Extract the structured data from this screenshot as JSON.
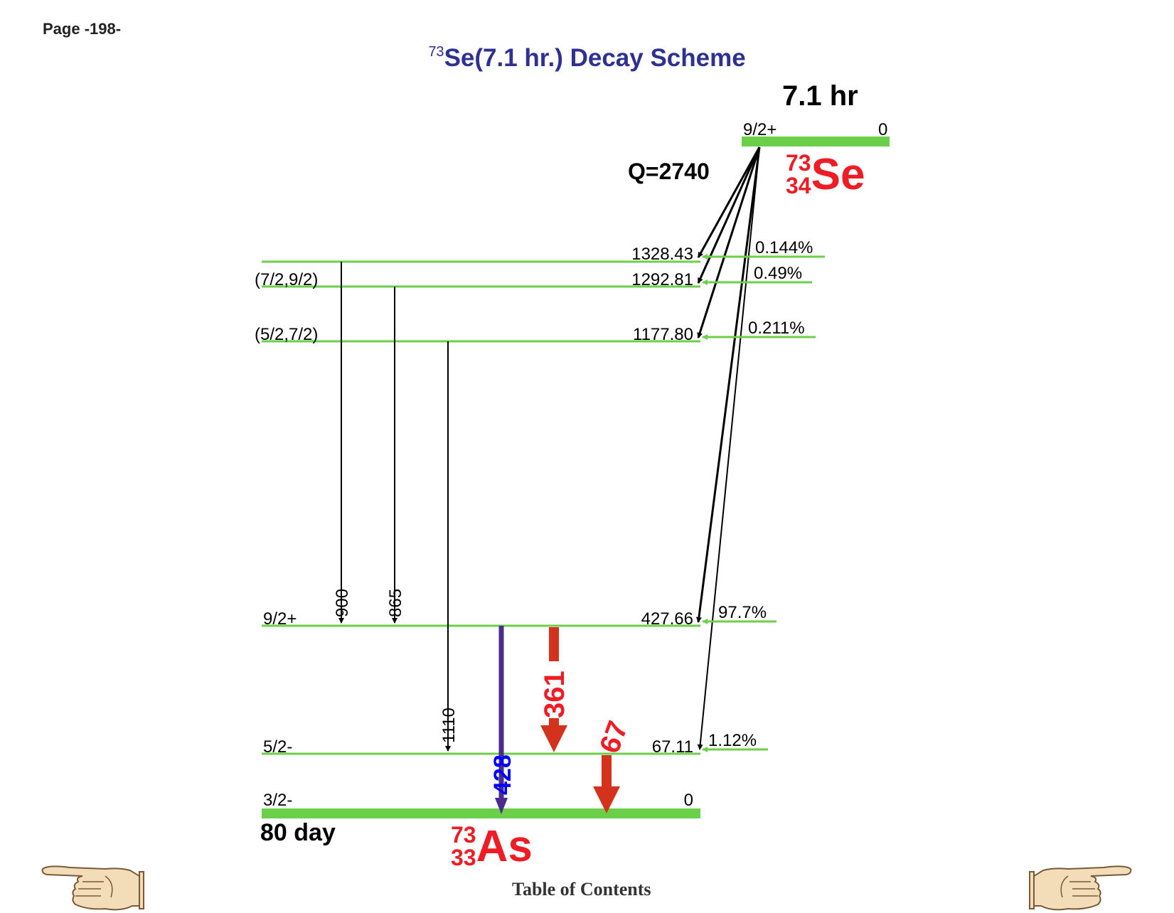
{
  "page_label": "Page -198-",
  "title": {
    "mass_number": "73",
    "text": "Se(7.1 hr.) Decay Scheme"
  },
  "parent": {
    "half_life": "7.1 hr",
    "spin": "9/2+",
    "energy": "0",
    "q_value": "Q=2740",
    "mass": "73",
    "z": "34",
    "symbol": "Se"
  },
  "daughter": {
    "half_life": "80 day",
    "mass": "73",
    "z": "33",
    "symbol": "As"
  },
  "levels": [
    {
      "energy": "1328.43",
      "spin": "",
      "beta_branch": "0.144%"
    },
    {
      "energy": "1292.81",
      "spin": "(7/2,9/2)",
      "beta_branch": "0.49%"
    },
    {
      "energy": "1177.80",
      "spin": "(5/2,7/2)",
      "beta_branch": "0.211%"
    },
    {
      "energy": "427.66",
      "spin": "9/2+",
      "beta_branch": "97.7%"
    },
    {
      "energy": "67.11",
      "spin": "5/2-",
      "beta_branch": "1.12%"
    },
    {
      "energy": "0",
      "spin": "3/2-",
      "beta_branch": ""
    }
  ],
  "gammas": [
    {
      "label": "900",
      "from": "1328.43",
      "to": "427.66",
      "color": "#000000"
    },
    {
      "label": "865",
      "from": "1292.81",
      "to": "427.66",
      "color": "#000000"
    },
    {
      "label": "1110",
      "from": "1177.80",
      "to": "67.11",
      "color": "#000000"
    },
    {
      "label": "428",
      "from": "427.66",
      "to": "0",
      "color": "#0000ff"
    },
    {
      "label": "361",
      "from": "427.66",
      "to": "67.11",
      "color": "#ee1c24"
    },
    {
      "label": "67",
      "from": "67.11",
      "to": "0",
      "color": "#ee1c24"
    }
  ],
  "colors": {
    "level": "#6ccf4a",
    "title": "#2e3192",
    "nuclide": "#ee1c24",
    "strong_gamma": "#d4321c",
    "gamma_428_line": "#4b2c8c"
  },
  "nav": {
    "toc": "Table of Contents",
    "prev_icon": "pointing-hand-left-icon",
    "next_icon": "pointing-hand-right-icon"
  }
}
